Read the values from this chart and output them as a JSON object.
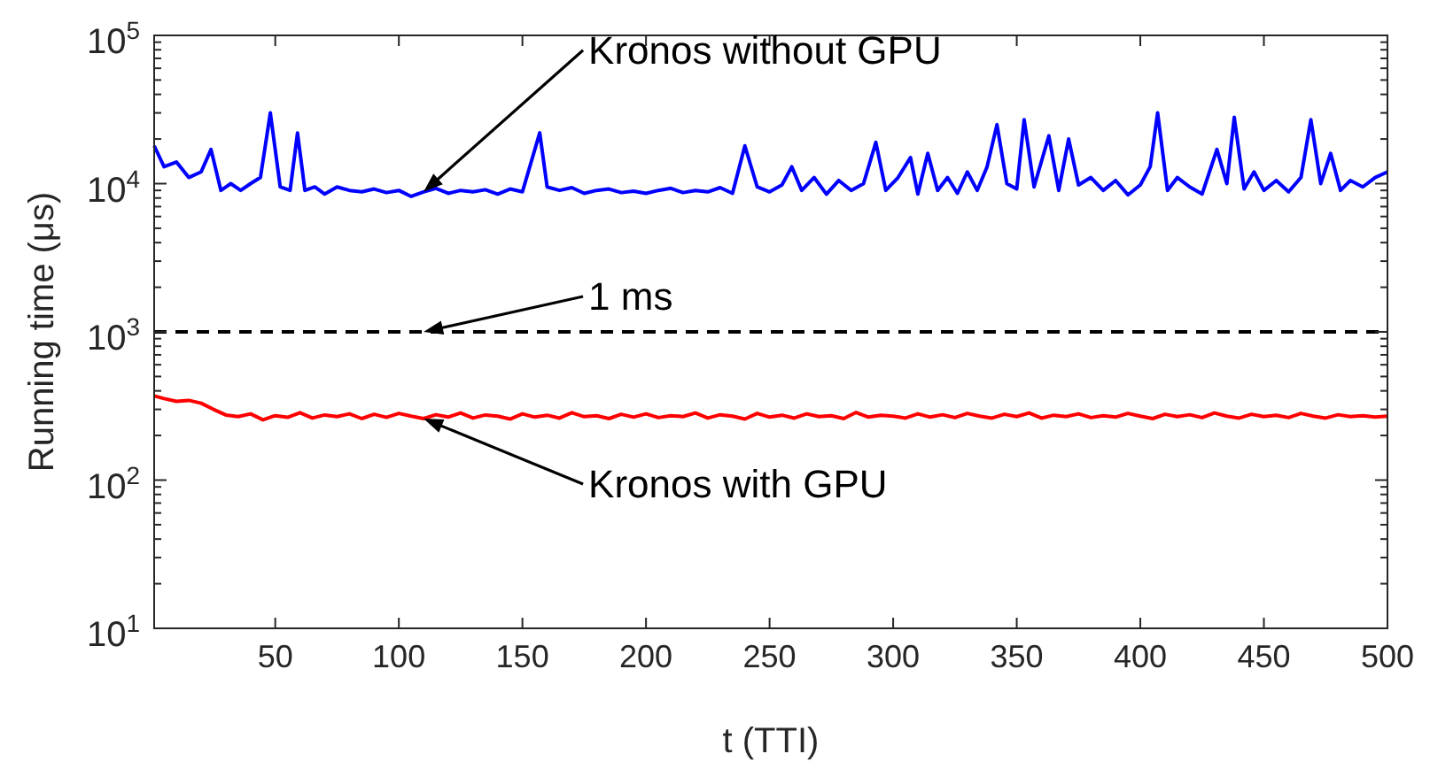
{
  "chart_data": {
    "type": "line",
    "xlabel": "t (TTI)",
    "ylabel": "Running time (μs)",
    "log": "y",
    "grid": false,
    "marker": "none",
    "line_style": "solid",
    "xlim": [
      1,
      500
    ],
    "xticks": [
      50,
      100,
      150,
      200,
      250,
      300,
      350,
      400,
      450,
      500
    ],
    "ylim": [
      10,
      100000
    ],
    "yticks": [
      {
        "value": 10,
        "label": "10$^{1}$"
      },
      {
        "value": 20,
        "label": null
      },
      {
        "value": 30,
        "label": null
      },
      {
        "value": 40,
        "label": null
      },
      {
        "value": 50,
        "label": null
      },
      {
        "value": 60,
        "label": null
      },
      {
        "value": 70,
        "label": null
      },
      {
        "value": 80,
        "label": null
      },
      {
        "value": 90,
        "label": null
      },
      {
        "value": 100,
        "label": "10$^{2}$"
      },
      {
        "value": 200,
        "label": null
      },
      {
        "value": 300,
        "label": null
      },
      {
        "value": 400,
        "label": null
      },
      {
        "value": 500,
        "label": null
      },
      {
        "value": 600,
        "label": null
      },
      {
        "value": 700,
        "label": null
      },
      {
        "value": 800,
        "label": null
      },
      {
        "value": 900,
        "label": null
      },
      {
        "value": 1000,
        "label": "10$^{3}$"
      },
      {
        "value": 2000,
        "label": null
      },
      {
        "value": 3000,
        "label": null
      },
      {
        "value": 4000,
        "label": null
      },
      {
        "value": 5000,
        "label": null
      },
      {
        "value": 6000,
        "label": null
      },
      {
        "value": 7000,
        "label": null
      },
      {
        "value": 8000,
        "label": null
      },
      {
        "value": 9000,
        "label": null
      },
      {
        "value": 10000,
        "label": "10$^{4}$"
      },
      {
        "value": 20000,
        "label": null
      },
      {
        "value": 30000,
        "label": null
      },
      {
        "value": 40000,
        "label": null
      },
      {
        "value": 50000,
        "label": null
      },
      {
        "value": 60000,
        "label": null
      },
      {
        "value": 70000,
        "label": null
      },
      {
        "value": 80000,
        "label": null
      },
      {
        "value": 90000,
        "label": null
      },
      {
        "value": 100000,
        "label": "10$^{5}$"
      }
    ],
    "series": [
      {
        "name": "Kronos without GPU",
        "color": "#0000ff",
        "x": [
          1,
          5,
          10,
          15,
          20,
          24,
          28,
          32,
          36,
          40,
          44,
          48,
          52,
          56,
          59,
          62,
          66,
          70,
          75,
          80,
          85,
          90,
          95,
          100,
          105,
          110,
          115,
          120,
          125,
          130,
          135,
          140,
          145,
          150,
          157,
          160,
          165,
          170,
          175,
          180,
          185,
          190,
          195,
          200,
          205,
          210,
          215,
          220,
          225,
          230,
          235,
          240,
          245,
          250,
          255,
          259,
          263,
          268,
          273,
          278,
          283,
          288,
          293,
          297,
          302,
          307,
          310,
          314,
          318,
          322,
          326,
          330,
          334,
          338,
          342,
          346,
          350,
          353,
          357,
          363,
          367,
          371,
          375,
          380,
          385,
          390,
          395,
          400,
          404,
          407,
          411,
          415,
          420,
          425,
          431,
          435,
          438,
          442,
          446,
          450,
          455,
          460,
          465,
          469,
          473,
          477,
          481,
          485,
          490,
          495,
          500
        ],
        "values": [
          18000,
          13000,
          14000,
          11000,
          12000,
          17000,
          9000,
          10000,
          9000,
          10000,
          11000,
          30000,
          9500,
          9000,
          22000,
          9000,
          9500,
          8500,
          9500,
          9000,
          8800,
          9200,
          8700,
          9000,
          8200,
          8800,
          9300,
          8600,
          9000,
          8800,
          9100,
          8500,
          9200,
          8800,
          22000,
          9500,
          9000,
          9400,
          8600,
          9000,
          9200,
          8700,
          8900,
          8600,
          9000,
          9300,
          8700,
          9000,
          8800,
          9400,
          8600,
          18000,
          9500,
          8800,
          9800,
          13000,
          9000,
          11000,
          8500,
          10500,
          9000,
          10000,
          19000,
          9000,
          11000,
          15000,
          8500,
          16000,
          9000,
          11000,
          8600,
          12000,
          9000,
          13000,
          25000,
          10000,
          9200,
          27000,
          9500,
          21000,
          9000,
          20000,
          9800,
          11000,
          9000,
          10500,
          8400,
          9800,
          13000,
          30000,
          9000,
          11000,
          9500,
          8500,
          17000,
          10000,
          28000,
          9200,
          12000,
          9000,
          10500,
          8800,
          11000,
          27000,
          10000,
          16000,
          9000,
          10500,
          9500,
          11000,
          12000
        ]
      },
      {
        "name": "Kronos with GPU",
        "color": "#ff0000",
        "x": [
          1,
          5,
          10,
          15,
          20,
          25,
          30,
          35,
          40,
          45,
          50,
          55,
          60,
          65,
          70,
          75,
          80,
          85,
          90,
          95,
          100,
          105,
          110,
          115,
          120,
          125,
          130,
          135,
          140,
          145,
          150,
          155,
          160,
          165,
          170,
          175,
          180,
          185,
          190,
          195,
          200,
          205,
          210,
          215,
          220,
          225,
          230,
          235,
          240,
          245,
          250,
          255,
          260,
          265,
          270,
          275,
          280,
          285,
          290,
          295,
          300,
          305,
          310,
          315,
          320,
          325,
          330,
          335,
          340,
          345,
          350,
          355,
          360,
          365,
          370,
          375,
          380,
          385,
          390,
          395,
          400,
          405,
          410,
          415,
          420,
          425,
          430,
          435,
          440,
          445,
          450,
          455,
          460,
          465,
          470,
          475,
          480,
          485,
          490,
          495,
          500
        ],
        "values": [
          370,
          355,
          340,
          345,
          330,
          300,
          275,
          268,
          280,
          255,
          272,
          265,
          285,
          262,
          275,
          268,
          280,
          260,
          278,
          265,
          282,
          270,
          260,
          276,
          266,
          284,
          262,
          275,
          270,
          258,
          280,
          266,
          274,
          262,
          285,
          268,
          272,
          260,
          278,
          266,
          280,
          264,
          272,
          268,
          284,
          262,
          276,
          270,
          258,
          282,
          266,
          274,
          262,
          280,
          268,
          272,
          260,
          286,
          266,
          274,
          270,
          262,
          280,
          266,
          276,
          264,
          282,
          270,
          262,
          278,
          268,
          284,
          262,
          274,
          268,
          280,
          264,
          272,
          266,
          282,
          270,
          260,
          278,
          268,
          276,
          264,
          284,
          270,
          262,
          278,
          268,
          274,
          264,
          282,
          270,
          262,
          276,
          268,
          272,
          266,
          270
        ]
      }
    ],
    "ref_lines": [
      {
        "axis": "y",
        "value": 1000,
        "color": "#000000",
        "line_style": "dashed"
      }
    ],
    "annotations": [
      "1 ms"
    ]
  }
}
